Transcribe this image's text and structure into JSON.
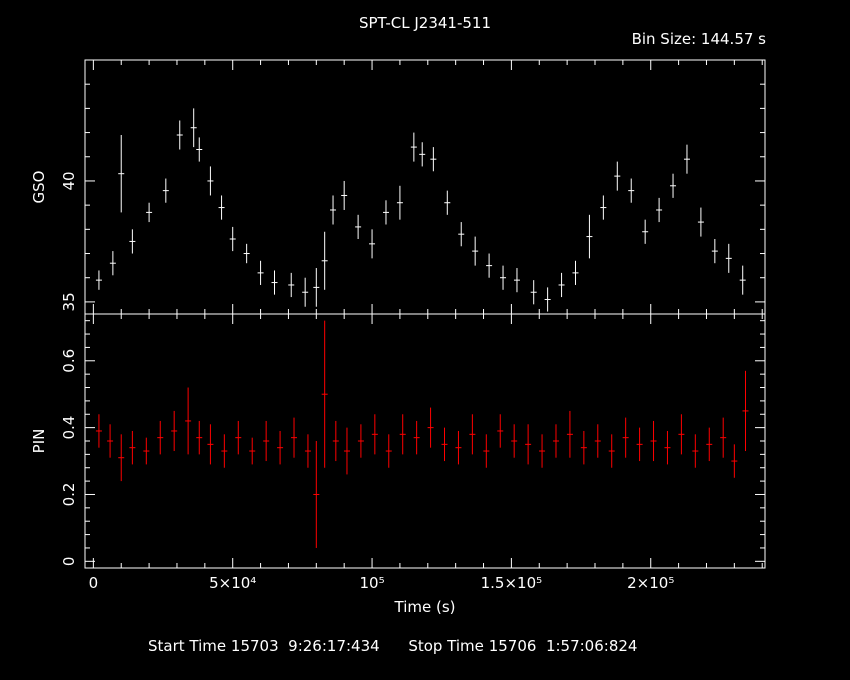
{
  "header": {
    "title": "SPT-CL J2341-511",
    "bin_size": "Bin Size: 144.57 s"
  },
  "footer": {
    "start_label": "Start Time",
    "start_value": "15703  9:26:17:434",
    "stop_label": "Stop Time",
    "stop_value": "15706  1:57:06:824"
  },
  "colors": {
    "background": "#000000",
    "axes": "#ffffff",
    "gso_series": "#ffffff",
    "pin_series": "#ff0000"
  },
  "chart_data": [
    {
      "type": "scatter",
      "panel": "top",
      "ylabel": "GSO",
      "xlabel": "",
      "xlim": [
        -3000,
        241000
      ],
      "ylim": [
        34.5,
        45
      ],
      "yticks": [
        35,
        40
      ],
      "ytick_labels": [
        "35",
        "40"
      ],
      "error_bars": true,
      "series": [
        {
          "color": "#ffffff",
          "x": [
            2000,
            7000,
            10000,
            14000,
            20000,
            26000,
            31000,
            36000,
            38000,
            42000,
            46000,
            50000,
            55000,
            60000,
            65000,
            71000,
            76000,
            80000,
            83000,
            86000,
            90000,
            95000,
            100000,
            105000,
            110000,
            115000,
            118000,
            122000,
            127000,
            132000,
            137000,
            142000,
            147000,
            152000,
            158000,
            163000,
            168000,
            173000,
            178000,
            183000,
            188000,
            193000,
            198000,
            203000,
            208000,
            213000,
            218000,
            223000,
            228000,
            233000
          ],
          "y": [
            35.9,
            36.6,
            40.3,
            37.5,
            38.7,
            39.6,
            41.9,
            42.2,
            41.3,
            40.0,
            38.9,
            37.6,
            37.0,
            36.2,
            35.8,
            35.7,
            35.4,
            35.6,
            36.7,
            38.8,
            39.4,
            38.1,
            37.4,
            38.7,
            39.1,
            41.4,
            41.1,
            40.9,
            39.1,
            37.8,
            37.1,
            36.5,
            36.0,
            35.9,
            35.4,
            35.1,
            35.7,
            36.2,
            37.7,
            38.9,
            40.2,
            39.6,
            37.9,
            38.8,
            39.8,
            40.9,
            38.3,
            37.1,
            36.8,
            35.9
          ],
          "err": [
            0.4,
            0.5,
            1.6,
            0.5,
            0.4,
            0.5,
            0.6,
            0.8,
            0.5,
            0.6,
            0.5,
            0.5,
            0.4,
            0.5,
            0.5,
            0.5,
            0.6,
            0.8,
            1.2,
            0.6,
            0.6,
            0.5,
            0.6,
            0.5,
            0.7,
            0.6,
            0.5,
            0.5,
            0.5,
            0.5,
            0.6,
            0.5,
            0.5,
            0.5,
            0.5,
            0.5,
            0.5,
            0.5,
            0.9,
            0.5,
            0.6,
            0.5,
            0.5,
            0.5,
            0.5,
            0.6,
            0.6,
            0.5,
            0.6,
            0.6
          ]
        }
      ]
    },
    {
      "type": "scatter",
      "panel": "bottom",
      "ylabel": "PIN",
      "xlabel": "Time (s)",
      "xlim": [
        -3000,
        241000
      ],
      "ylim": [
        -0.02,
        0.74
      ],
      "yticks": [
        0,
        0.2,
        0.4,
        0.6
      ],
      "ytick_labels": [
        "0",
        "0.2",
        "0.4",
        "0.6"
      ],
      "xticks": [
        0,
        50000,
        100000,
        150000,
        200000
      ],
      "xtick_labels": [
        "0",
        "5×10⁴",
        "10⁵",
        "1.5×10⁵",
        "2×10⁵"
      ],
      "error_bars": true,
      "series": [
        {
          "color": "#ff0000",
          "x": [
            2000,
            6000,
            10000,
            14000,
            19000,
            24000,
            29000,
            34000,
            38000,
            42000,
            47000,
            52000,
            57000,
            62000,
            67000,
            72000,
            77000,
            80000,
            83000,
            87000,
            91000,
            96000,
            101000,
            106000,
            111000,
            116000,
            121000,
            126000,
            131000,
            136000,
            141000,
            146000,
            151000,
            156000,
            161000,
            166000,
            171000,
            176000,
            181000,
            186000,
            191000,
            196000,
            201000,
            206000,
            211000,
            216000,
            221000,
            226000,
            230000,
            234000
          ],
          "y": [
            0.39,
            0.36,
            0.31,
            0.34,
            0.33,
            0.37,
            0.39,
            0.42,
            0.37,
            0.35,
            0.33,
            0.37,
            0.33,
            0.36,
            0.34,
            0.37,
            0.33,
            0.2,
            0.5,
            0.36,
            0.33,
            0.36,
            0.38,
            0.33,
            0.38,
            0.37,
            0.4,
            0.35,
            0.34,
            0.38,
            0.33,
            0.39,
            0.36,
            0.35,
            0.33,
            0.36,
            0.38,
            0.34,
            0.36,
            0.33,
            0.37,
            0.35,
            0.36,
            0.34,
            0.38,
            0.33,
            0.35,
            0.37,
            0.3,
            0.45
          ],
          "err": [
            0.05,
            0.05,
            0.07,
            0.05,
            0.04,
            0.05,
            0.06,
            0.1,
            0.05,
            0.06,
            0.05,
            0.05,
            0.04,
            0.06,
            0.05,
            0.06,
            0.05,
            0.16,
            0.22,
            0.06,
            0.07,
            0.05,
            0.06,
            0.05,
            0.06,
            0.05,
            0.06,
            0.05,
            0.05,
            0.06,
            0.05,
            0.05,
            0.05,
            0.06,
            0.05,
            0.05,
            0.07,
            0.05,
            0.05,
            0.05,
            0.06,
            0.05,
            0.06,
            0.05,
            0.06,
            0.05,
            0.05,
            0.06,
            0.05,
            0.12
          ]
        }
      ]
    }
  ]
}
